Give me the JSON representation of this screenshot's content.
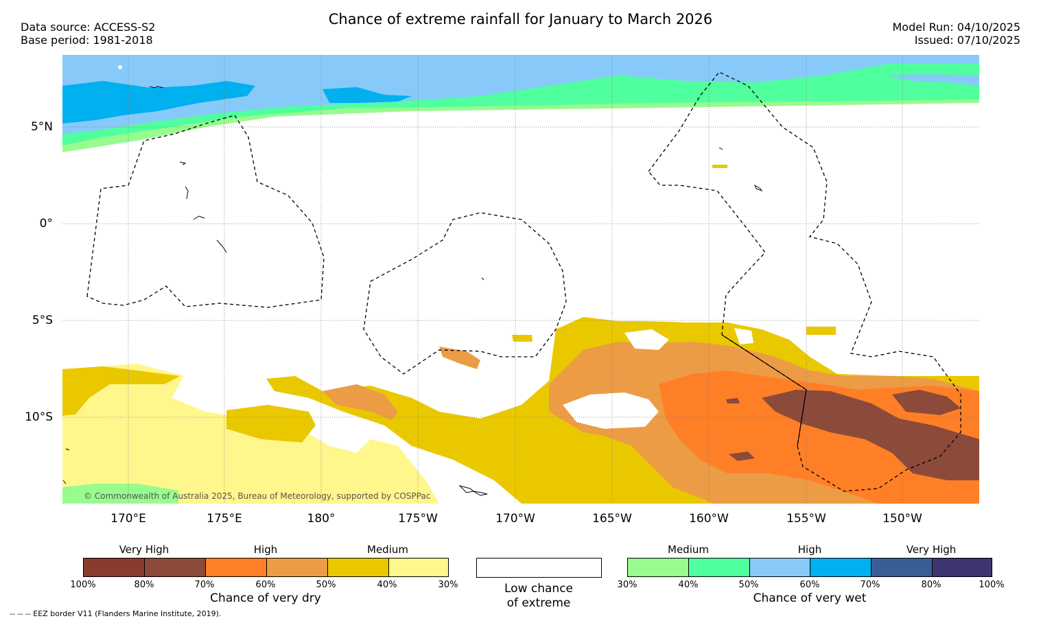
{
  "title": "Chance of extreme rainfall for January to March 2026",
  "meta": {
    "data_source": "Data source: ACCESS-S2",
    "base_period": "Base period: 1981-2018",
    "model_run": "Model Run: 04/10/2025",
    "issued": "Issued: 07/10/2025"
  },
  "map": {
    "lat_labels": [
      "5°N",
      "0°",
      "5°S",
      "10°S"
    ],
    "lon_labels": [
      "170°E",
      "175°E",
      "180°",
      "175°W",
      "170°W",
      "165°W",
      "160°W",
      "155°W",
      "150°W"
    ],
    "copyright": "© Commonwealth of Australia 2025, Bureau of Meteorology, supported by COSPPac"
  },
  "legend": {
    "dry": {
      "categories": [
        "Very High",
        "High",
        "Medium"
      ],
      "colors": [
        "#8b3a30",
        "#8b4a3a",
        "#ff7f27",
        "#ec9c45",
        "#eac800",
        "#fff68c"
      ],
      "percent_labels": [
        "100%",
        "80%",
        "70%",
        "60%",
        "50%",
        "40%",
        "30%"
      ],
      "caption": "Chance of very dry"
    },
    "low": {
      "caption_line1": "Low chance",
      "caption_line2": "of extreme",
      "color": "#ffffff"
    },
    "wet": {
      "categories": [
        "Medium",
        "High",
        "Very High"
      ],
      "colors": [
        "#98fb8e",
        "#50ff9e",
        "#87cafa",
        "#00b0ef",
        "#385e98",
        "#3c3570"
      ],
      "percent_labels": [
        "30%",
        "40%",
        "50%",
        "60%",
        "70%",
        "80%",
        "100%"
      ],
      "caption": "Chance of very wet"
    },
    "eez_note": "--  --  -- EEZ border V11 (Flanders Marine Institute, 2019)."
  }
}
